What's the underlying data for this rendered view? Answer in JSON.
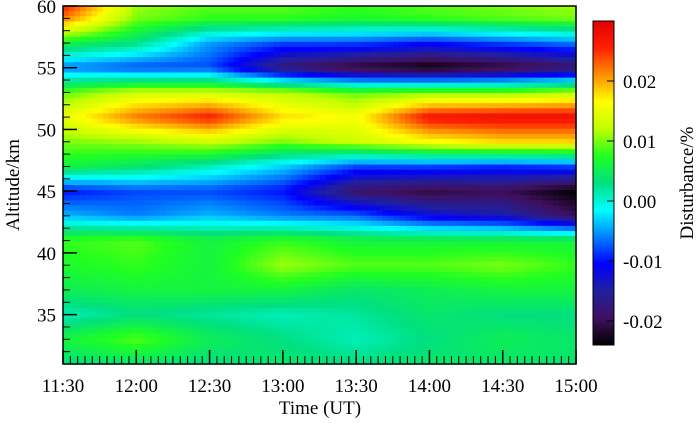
{
  "chart_data": {
    "type": "heatmap",
    "title": "",
    "xlabel": "Time (UT)",
    "ylabel": "Altitude/km",
    "colorbar_label": "Disturbance/%",
    "x_ticks": [
      "11:30",
      "12:00",
      "12:30",
      "13:00",
      "13:30",
      "14:00",
      "14:30",
      "15:00"
    ],
    "y_ticks": [
      35,
      40,
      45,
      50,
      55,
      60
    ],
    "ylim": [
      31,
      60
    ],
    "colorbar_ticks": [
      0.02,
      0.01,
      0.0,
      -0.01,
      -0.02
    ],
    "colorbar_tick_labels": [
      "0.02",
      "0.01",
      "0.00",
      "-0.01",
      "-0.02"
    ],
    "colorbar_range": [
      -0.024,
      0.03
    ],
    "colormap": [
      "#000000",
      "#401060",
      "#2020a0",
      "#0000ff",
      "#0080ff",
      "#00ffff",
      "#00e080",
      "#20ff20",
      "#c0ff00",
      "#ffff00",
      "#ff9000",
      "#ff2000",
      "#e00000"
    ],
    "altitudes_km": [
      31,
      33,
      35,
      37,
      39,
      41,
      43,
      45,
      47,
      49,
      51,
      53,
      55,
      57,
      59,
      60
    ],
    "times_ut": [
      "11:30",
      "12:00",
      "12:30",
      "13:00",
      "13:30",
      "14:00",
      "14:30",
      "15:00"
    ],
    "values": [
      [
        0.003,
        0.004,
        0.003,
        0.004,
        0.003,
        0.004,
        0.004,
        0.004
      ],
      [
        0.006,
        0.009,
        0.005,
        0.003,
        0.001,
        0.003,
        0.005,
        0.004
      ],
      [
        0.001,
        0.003,
        0.002,
        0.001,
        0.002,
        0.004,
        0.003,
        0.003
      ],
      [
        0.005,
        0.006,
        0.006,
        0.006,
        0.004,
        0.005,
        0.006,
        0.006
      ],
      [
        0.007,
        0.008,
        0.006,
        0.011,
        0.009,
        0.009,
        0.01,
        0.008
      ],
      [
        0.008,
        0.009,
        0.006,
        0.008,
        0.006,
        0.006,
        0.006,
        0.006
      ],
      [
        -0.004,
        -0.006,
        -0.004,
        -0.006,
        -0.007,
        -0.012,
        -0.014,
        -0.02
      ],
      [
        -0.01,
        -0.008,
        -0.008,
        -0.01,
        -0.019,
        -0.021,
        -0.02,
        -0.024
      ],
      [
        0.006,
        0.004,
        0.001,
        -0.003,
        -0.008,
        -0.008,
        -0.009,
        -0.008
      ],
      [
        0.01,
        0.011,
        0.013,
        0.01,
        0.013,
        0.016,
        0.018,
        0.018
      ],
      [
        0.015,
        0.022,
        0.026,
        0.018,
        0.016,
        0.027,
        0.028,
        0.028
      ],
      [
        0.009,
        0.013,
        0.013,
        0.012,
        0.009,
        0.01,
        0.01,
        0.012
      ],
      [
        -0.006,
        -0.008,
        -0.008,
        -0.018,
        -0.022,
        -0.024,
        -0.022,
        -0.019
      ],
      [
        0.006,
        0.003,
        -0.005,
        -0.008,
        -0.008,
        -0.01,
        -0.008,
        -0.006
      ],
      [
        0.022,
        0.01,
        0.008,
        0.008,
        0.007,
        0.008,
        0.009,
        0.01
      ],
      [
        0.026,
        0.011,
        0.009,
        0.009,
        0.008,
        0.009,
        0.01,
        0.011
      ]
    ],
    "grid": false,
    "legend": "colorbar-right"
  }
}
